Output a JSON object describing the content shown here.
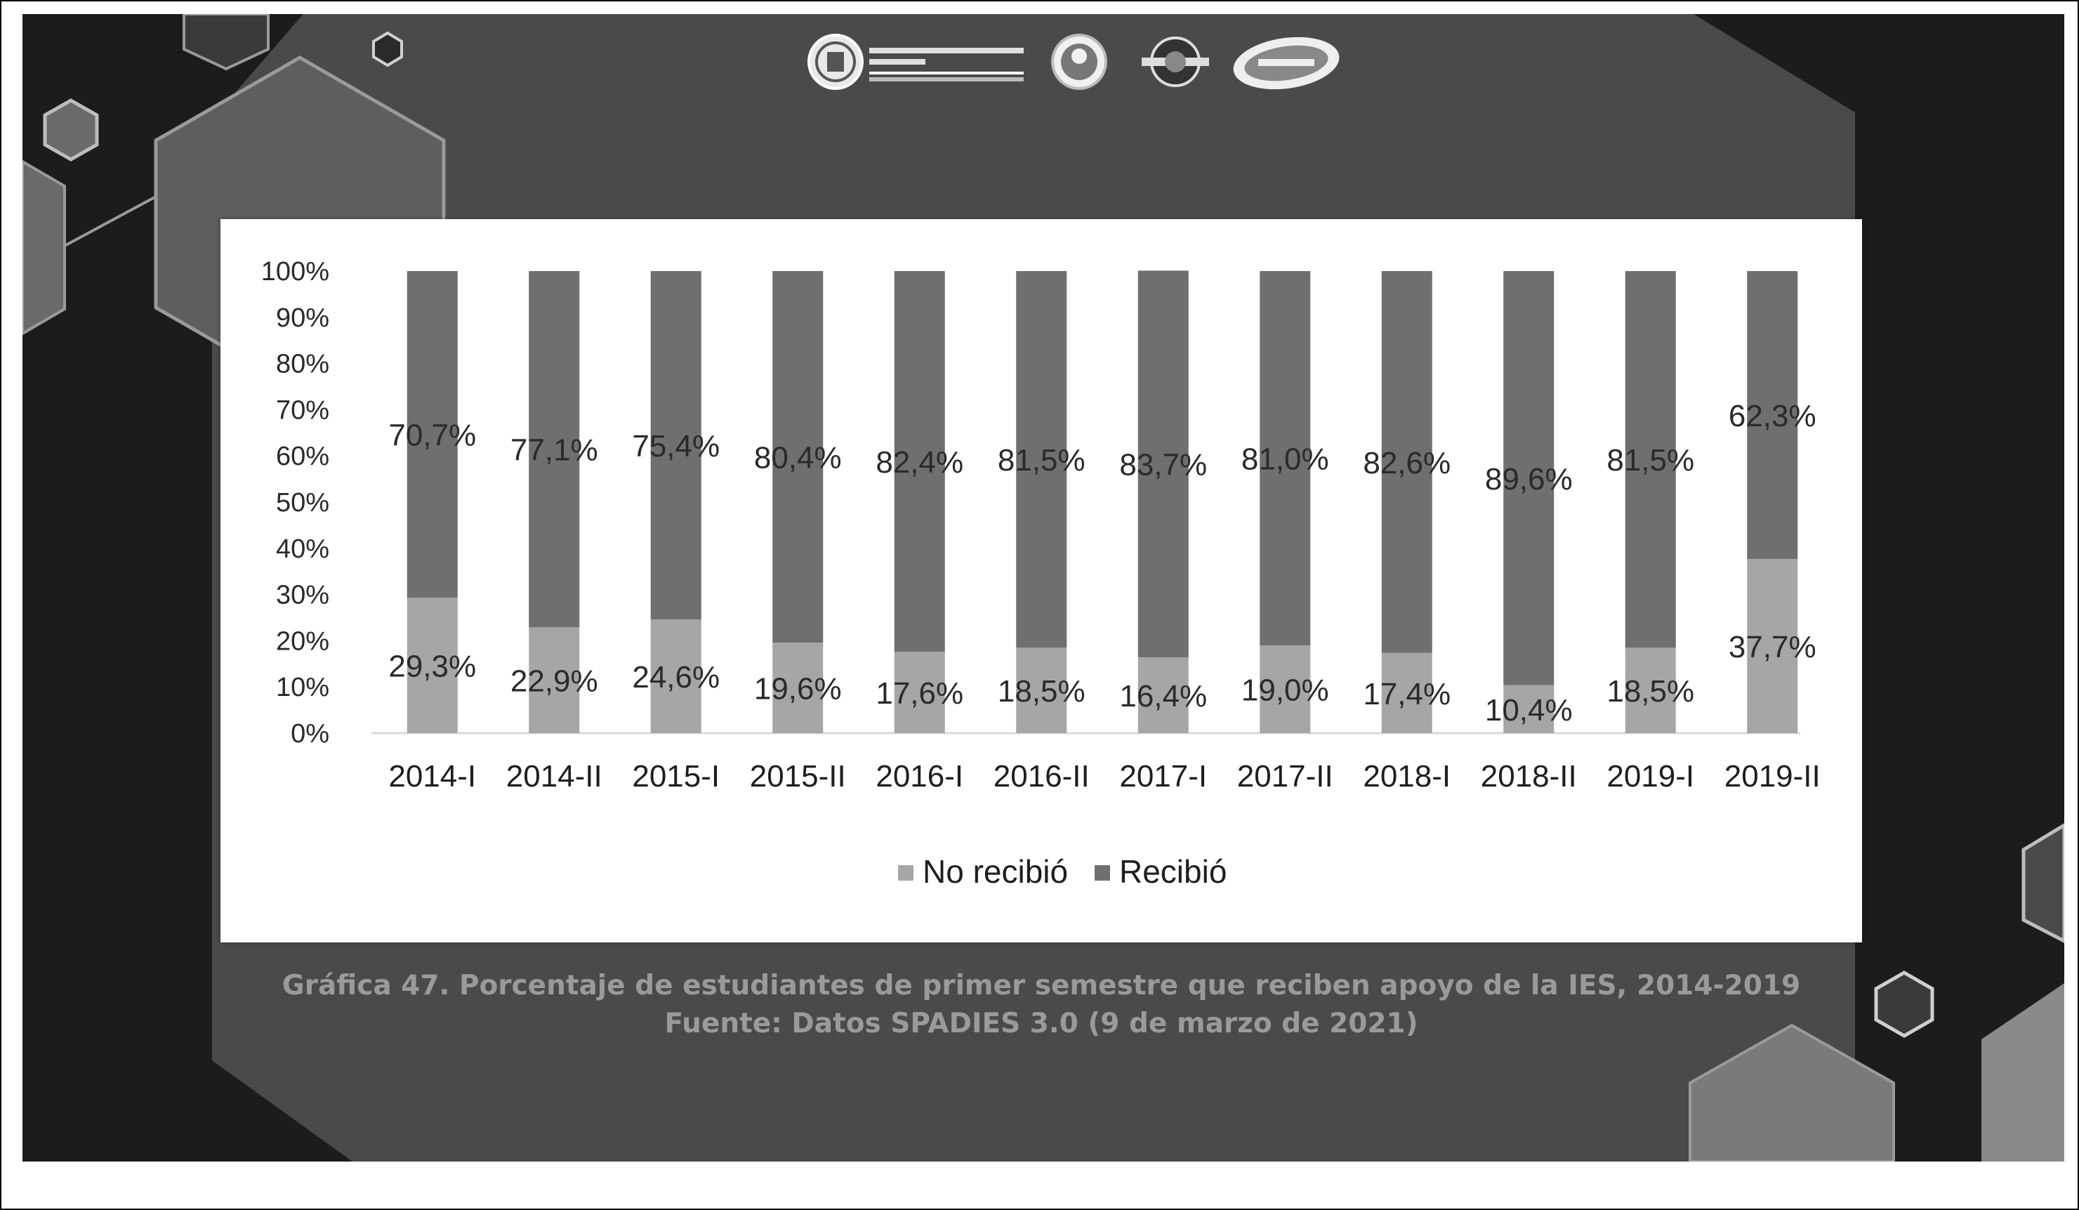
{
  "colors": {
    "no_recibio": "#a6a6a6",
    "recibio": "#6f6f6f",
    "slide_background": "#1c1c1c",
    "slide_panel": "#4a4a4a",
    "chart_background": "#ffffff"
  },
  "logos": [
    "university-seal-icon",
    "portrait-seal-icon",
    "round-badge-icon",
    "oval-emblem-icon"
  ],
  "chart_data": {
    "type": "bar",
    "stacked": true,
    "categories": [
      "2014-I",
      "2014-II",
      "2015-I",
      "2015-II",
      "2016-I",
      "2016-II",
      "2017-I",
      "2017-II",
      "2018-I",
      "2018-II",
      "2019-I",
      "2019-II"
    ],
    "series": [
      {
        "name": "No recibió",
        "values": [
          29.3,
          22.9,
          24.6,
          19.6,
          17.6,
          18.5,
          16.4,
          19.0,
          17.4,
          10.4,
          18.5,
          37.7
        ],
        "labels": [
          "29,3%",
          "22,9%",
          "24,6%",
          "19,6%",
          "17,6%",
          "18,5%",
          "16,4%",
          "19,0%",
          "17,4%",
          "10,4%",
          "18,5%",
          "37,7%"
        ]
      },
      {
        "name": "Recibió",
        "values": [
          70.7,
          77.1,
          75.4,
          80.4,
          82.4,
          81.5,
          83.7,
          81.0,
          82.6,
          89.6,
          81.5,
          62.3
        ],
        "labels": [
          "70,7%",
          "77,1%",
          "75,4%",
          "80,4%",
          "82,4%",
          "81,5%",
          "83,7%",
          "81,0%",
          "82,6%",
          "89,6%",
          "81,5%",
          "62,3%"
        ]
      }
    ],
    "y_ticks": [
      "0%",
      "10%",
      "20%",
      "30%",
      "40%",
      "50%",
      "60%",
      "70%",
      "80%",
      "90%",
      "100%"
    ],
    "ylim": [
      0,
      100
    ],
    "grid": false,
    "legend_position": "bottom",
    "caption": "Gráfica 47. Porcentaje de estudiantes de primer semestre que reciben apoyo de la IES, 2014-2019",
    "source": "Fuente: Datos SPADIES 3.0 (9 de marzo de 2021)"
  }
}
